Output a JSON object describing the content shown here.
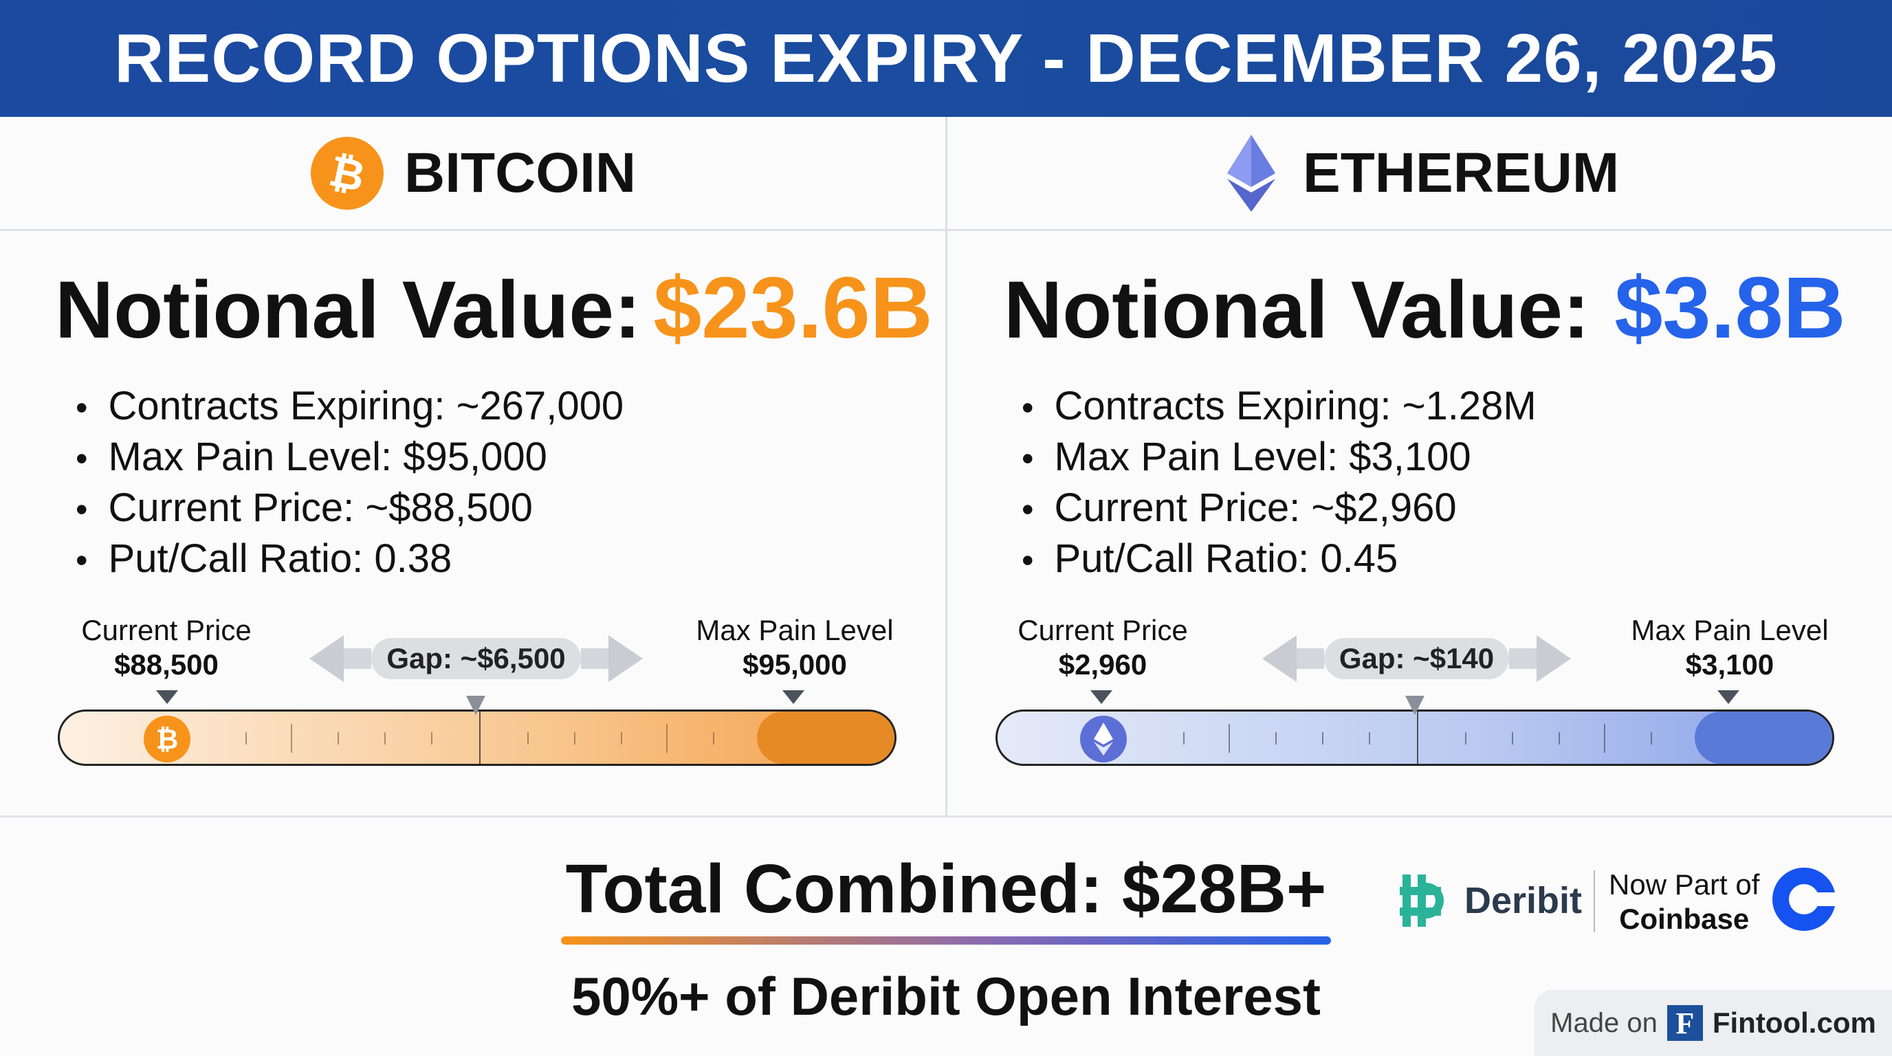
{
  "header": {
    "title": "RECORD OPTIONS EXPIRY - DECEMBER 26, 2025"
  },
  "bitcoin": {
    "name": "BITCOIN",
    "notional_label": "Notional Value:",
    "notional_value": "$23.6B",
    "accent": "#f7931a",
    "bullets": [
      "Contracts Expiring: ~267,000",
      "Max Pain Level: $95,000",
      "Current Price: ~$88,500",
      "Put/Call Ratio: 0.38"
    ],
    "current_label": "Current Price",
    "current_value": "$88,500",
    "max_label": "Max Pain Level",
    "max_value": "$95,000",
    "gap": "Gap: ~$6,500"
  },
  "ethereum": {
    "name": "ETHEREUM",
    "notional_label": "Notional Value:",
    "notional_value": "$3.8B",
    "accent": "#2563eb",
    "bullets": [
      "Contracts Expiring: ~1.28M",
      "Max Pain Level: $3,100",
      "Current Price: ~$2,960",
      "Put/Call Ratio: 0.45"
    ],
    "current_label": "Current Price",
    "current_value": "$2,960",
    "max_label": "Max Pain Level",
    "max_value": "$3,100",
    "gap": "Gap: ~$140"
  },
  "footer": {
    "total": "Total Combined: $28B+",
    "subtitle": "50%+ of Deribit Open Interest",
    "deribit": "Deribit",
    "now_part": "Now Part of",
    "coinbase": "Coinbase",
    "made_on": "Made on",
    "fintool": "Fintool.com",
    "fintool_letter": "F"
  }
}
